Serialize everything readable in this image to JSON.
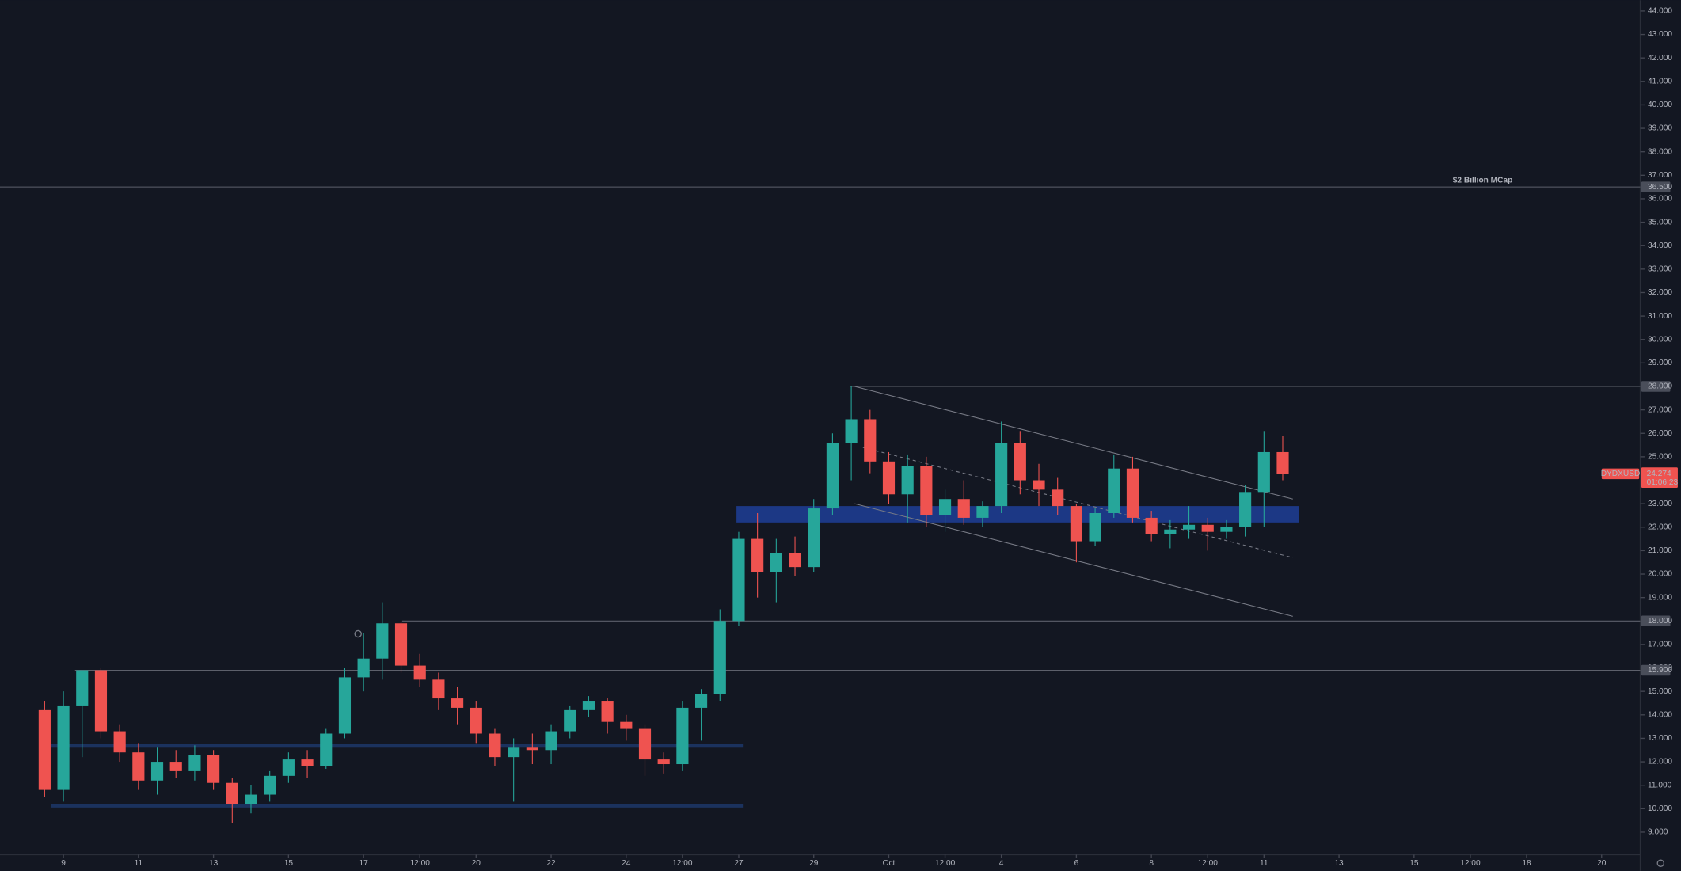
{
  "chart_data": {
    "type": "candlestick",
    "symbol": "DYDXUSD",
    "last_price": {
      "value": 24.274,
      "label": "24.274"
    },
    "countdown": "01:06:23",
    "up_color": "#26a69a",
    "down_color": "#ef5350",
    "xlim": [
      -1.69,
      42.03
    ],
    "ylim": [
      8.04,
      44.46
    ],
    "xticks": [
      {
        "value": 0,
        "label": "9"
      },
      {
        "value": 2,
        "label": "11"
      },
      {
        "value": 4,
        "label": "13"
      },
      {
        "value": 6,
        "label": "15"
      },
      {
        "value": 8,
        "label": "17"
      },
      {
        "value": 9.5,
        "label": "12:00"
      },
      {
        "value": 11,
        "label": "20"
      },
      {
        "value": 13,
        "label": "22"
      },
      {
        "value": 15,
        "label": "24"
      },
      {
        "value": 16.5,
        "label": "12:00"
      },
      {
        "value": 18,
        "label": "27"
      },
      {
        "value": 20,
        "label": "29"
      },
      {
        "value": 22,
        "label": "Oct"
      },
      {
        "value": 23.5,
        "label": "12:00"
      },
      {
        "value": 25,
        "label": "4"
      },
      {
        "value": 27,
        "label": "6"
      },
      {
        "value": 29,
        "label": "8"
      },
      {
        "value": 30.5,
        "label": "12:00"
      },
      {
        "value": 32,
        "label": "11"
      },
      {
        "value": 34,
        "label": "13"
      },
      {
        "value": 36,
        "label": "15"
      },
      {
        "value": 37.5,
        "label": "12:00"
      },
      {
        "value": 39,
        "label": "18"
      },
      {
        "value": 41,
        "label": "20"
      }
    ],
    "yticks": [
      {
        "value": 9,
        "label": "9.000"
      },
      {
        "value": 10,
        "label": "10.000"
      },
      {
        "value": 11,
        "label": "11.000"
      },
      {
        "value": 12,
        "label": "12.000"
      },
      {
        "value": 13,
        "label": "13.000"
      },
      {
        "value": 14,
        "label": "14.000"
      },
      {
        "value": 15,
        "label": "15.000"
      },
      {
        "value": 16,
        "label": "16.000"
      },
      {
        "value": 17,
        "label": "17.000"
      },
      {
        "value": 19,
        "label": "19.000"
      },
      {
        "value": 20,
        "label": "20.000"
      },
      {
        "value": 21,
        "label": "21.000"
      },
      {
        "value": 22,
        "label": "22.000"
      },
      {
        "value": 23,
        "label": "23.000"
      },
      {
        "value": 25,
        "label": "25.000"
      },
      {
        "value": 26,
        "label": "26.000"
      },
      {
        "value": 27,
        "label": "27.000"
      },
      {
        "value": 29,
        "label": "29.000"
      },
      {
        "value": 30,
        "label": "30.000"
      },
      {
        "value": 31,
        "label": "31.000"
      },
      {
        "value": 32,
        "label": "32.000"
      },
      {
        "value": 33,
        "label": "33.000"
      },
      {
        "value": 34,
        "label": "34.000"
      },
      {
        "value": 35,
        "label": "35.000"
      },
      {
        "value": 36,
        "label": "36.000"
      },
      {
        "value": 37,
        "label": "37.000"
      },
      {
        "value": 38,
        "label": "38.000"
      },
      {
        "value": 39,
        "label": "39.000"
      },
      {
        "value": 40,
        "label": "40.000"
      },
      {
        "value": 41,
        "label": "41.000"
      },
      {
        "value": 42,
        "label": "42.000"
      },
      {
        "value": 43,
        "label": "43.000"
      },
      {
        "value": 44,
        "label": "44.000"
      }
    ],
    "levels": [
      {
        "value": 36.5,
        "label": "36.500",
        "start": -1.69
      },
      {
        "value": 28,
        "label": "28.000",
        "start": 20.97
      },
      {
        "value": 18,
        "label": "18.000",
        "start": 9.03
      },
      {
        "value": 15.9,
        "label": "15.900",
        "start": 0.31
      }
    ],
    "annotation": {
      "text": "$2 Billion MCap",
      "x": 37.83,
      "y": 36.78
    },
    "zones": [
      {
        "x0": 17.94,
        "x1": 32.94,
        "y0": 22.2,
        "y1": 22.9
      },
      {
        "x0": -0.34,
        "x1": 18.11,
        "y0": 12.6,
        "y1": 12.75
      },
      {
        "x0": -0.34,
        "x1": 18.11,
        "y0": 10.05,
        "y1": 10.2
      }
    ],
    "trendlines": [
      {
        "x": [
          21.09,
          32.77
        ],
        "y": [
          28,
          23.2
        ],
        "dashed": false
      },
      {
        "x": [
          21.09,
          32.77
        ],
        "y": [
          23.0,
          18.2
        ],
        "dashed": false
      },
      {
        "x": [
          21.31,
          32.77
        ],
        "y": [
          25.4,
          20.7
        ],
        "dashed": true
      }
    ],
    "x": [
      -0.5,
      0,
      0.5,
      1,
      1.5,
      2,
      2.5,
      3,
      3.5,
      4,
      4.5,
      5,
      5.5,
      6,
      6.5,
      7,
      7.5,
      8,
      8.5,
      9,
      9.5,
      10,
      10.5,
      11,
      11.5,
      12,
      12.5,
      13,
      13.5,
      14,
      14.5,
      15,
      15.5,
      16,
      16.5,
      17,
      17.5,
      18,
      18.5,
      19,
      19.5,
      20,
      20.5,
      21,
      21.5,
      22,
      22.5,
      23,
      23.5,
      24,
      24.5,
      25,
      25.5,
      26,
      26.5,
      27,
      27.5,
      28,
      28.5,
      29,
      29.5,
      30,
      30.5,
      31,
      31.5,
      32,
      32.5
    ],
    "open": [
      14.2,
      10.8,
      14.4,
      15.9,
      13.3,
      12.4,
      11.2,
      12.0,
      11.6,
      12.3,
      11.1,
      10.2,
      10.6,
      11.4,
      12.1,
      11.8,
      13.2,
      15.6,
      16.4,
      17.9,
      16.1,
      15.5,
      14.7,
      14.3,
      13.2,
      12.2,
      12.6,
      12.5,
      13.3,
      14.2,
      14.6,
      13.7,
      13.4,
      12.1,
      11.9,
      14.3,
      14.9,
      18.0,
      21.5,
      20.1,
      20.9,
      20.3,
      22.8,
      25.6,
      26.6,
      24.8,
      23.4,
      24.6,
      22.5,
      23.2,
      22.4,
      22.9,
      25.6,
      24.0,
      23.6,
      22.9,
      21.4,
      22.6,
      24.5,
      22.4,
      21.7,
      21.9,
      22.1,
      21.8,
      22.0,
      23.5,
      25.2
    ],
    "high": [
      14.6,
      15.0,
      15.9,
      16.0,
      13.6,
      12.8,
      12.6,
      12.5,
      12.7,
      12.5,
      11.3,
      11.0,
      11.6,
      12.4,
      12.5,
      13.4,
      16.0,
      17.5,
      18.8,
      18.0,
      16.6,
      15.8,
      15.2,
      14.6,
      13.4,
      13.0,
      13.2,
      13.6,
      14.4,
      14.8,
      14.7,
      14.0,
      13.6,
      12.4,
      14.6,
      15.1,
      18.5,
      21.8,
      22.6,
      21.5,
      21.6,
      23.2,
      26.0,
      28.0,
      27.0,
      25.2,
      25.1,
      25.0,
      23.6,
      24.0,
      23.1,
      26.5,
      26.1,
      24.7,
      24.1,
      23.0,
      22.8,
      25.1,
      25.0,
      22.7,
      22.3,
      22.9,
      22.4,
      22.3,
      23.8,
      26.1,
      25.9
    ],
    "low": [
      10.5,
      10.3,
      12.2,
      13.0,
      12.0,
      10.8,
      10.6,
      11.3,
      11.2,
      10.8,
      9.4,
      9.8,
      10.3,
      11.1,
      11.3,
      11.7,
      13.0,
      15.0,
      15.5,
      15.8,
      15.2,
      14.2,
      13.6,
      12.8,
      11.8,
      10.3,
      11.9,
      11.9,
      13.0,
      13.9,
      13.2,
      12.9,
      11.4,
      11.5,
      11.6,
      12.9,
      14.6,
      17.8,
      19.0,
      18.8,
      19.9,
      20.1,
      22.5,
      24.0,
      24.3,
      23.0,
      22.2,
      22.0,
      21.8,
      22.1,
      22.0,
      22.6,
      23.4,
      22.9,
      22.5,
      20.5,
      21.2,
      22.4,
      22.2,
      21.4,
      21.1,
      21.5,
      21.0,
      21.5,
      21.6,
      22.0,
      24.0
    ],
    "close": [
      10.8,
      14.4,
      15.9,
      13.3,
      12.4,
      11.2,
      12.0,
      11.6,
      12.3,
      11.1,
      10.2,
      10.6,
      11.4,
      12.1,
      11.8,
      13.2,
      15.6,
      16.4,
      17.9,
      16.1,
      15.5,
      14.7,
      14.3,
      13.2,
      12.2,
      12.6,
      12.5,
      13.3,
      14.2,
      14.6,
      13.7,
      13.4,
      12.1,
      11.9,
      14.3,
      14.9,
      18.0,
      21.5,
      20.1,
      20.9,
      20.3,
      22.8,
      25.6,
      26.6,
      24.8,
      23.4,
      24.6,
      22.5,
      23.2,
      22.4,
      22.9,
      25.6,
      24.0,
      23.6,
      22.9,
      21.4,
      22.6,
      24.5,
      22.4,
      21.7,
      21.9,
      22.1,
      21.8,
      22.0,
      23.5,
      25.2,
      24.274
    ]
  }
}
